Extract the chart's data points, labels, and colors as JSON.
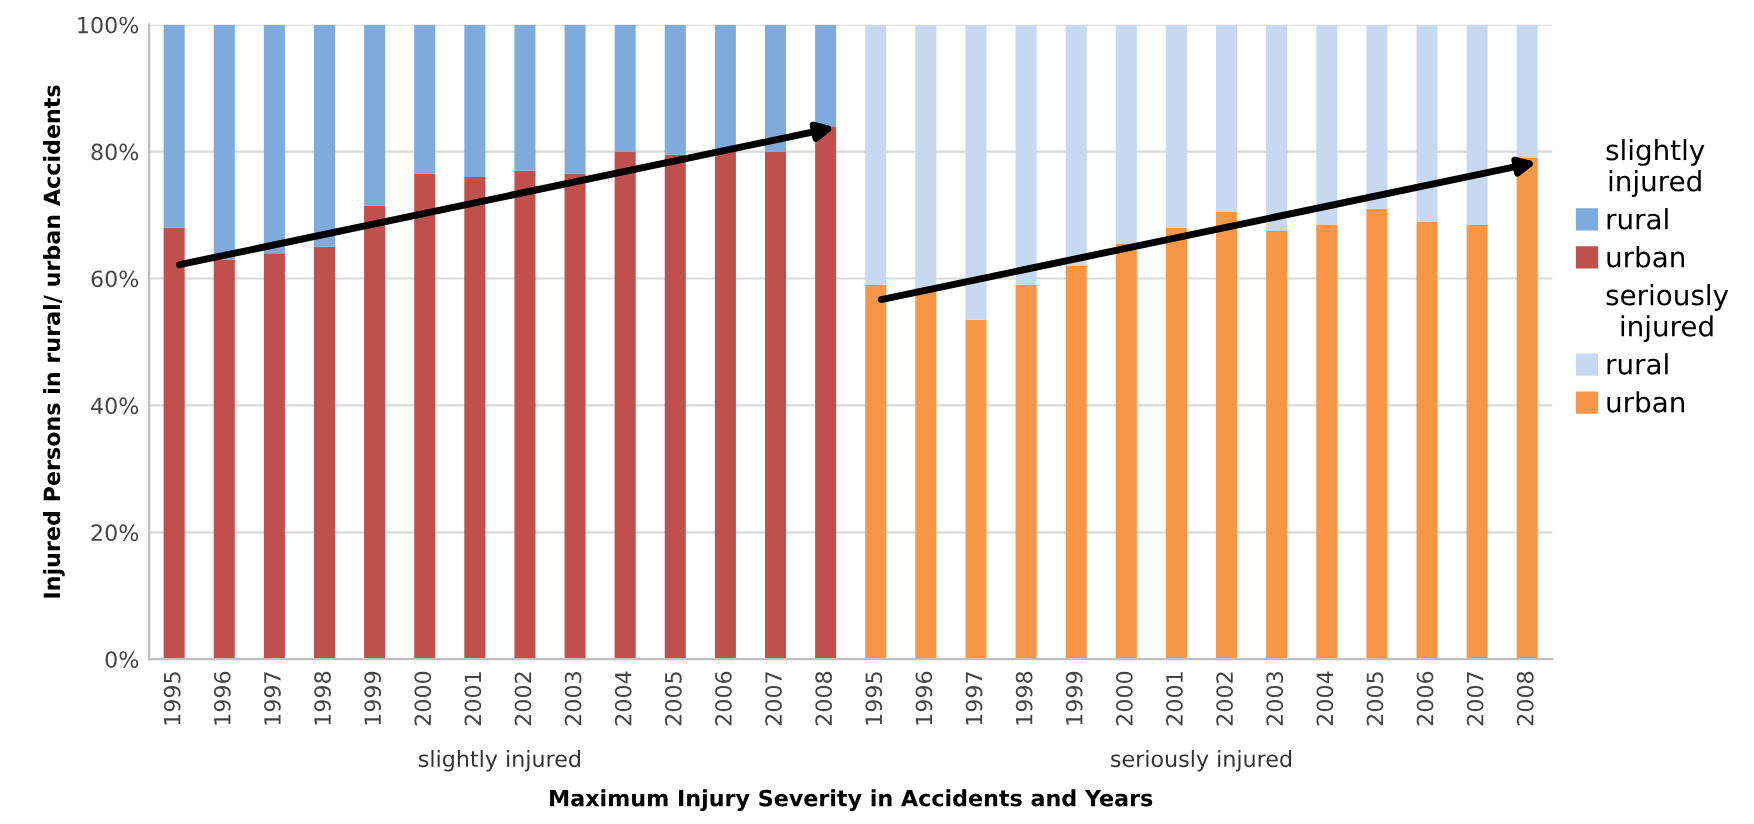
{
  "chart_data": {
    "type": "bar",
    "stacked": true,
    "xlabel": "Maximum Injury Severity in Accidents and Years",
    "ylabel": "Injured Persons in rural/ urban Accidents",
    "categories": [
      "1995",
      "1996",
      "1997",
      "1998",
      "1999",
      "2000",
      "2001",
      "2002",
      "2003",
      "2004",
      "2005",
      "2006",
      "2007",
      "2008",
      "1995",
      "1996",
      "1997",
      "1998",
      "1999",
      "2000",
      "2001",
      "2002",
      "2003",
      "2004",
      "2005",
      "2006",
      "2007",
      "2008"
    ],
    "series": [
      {
        "name": "urban",
        "color": "#c0504d",
        "values": [
          68,
          63,
          64,
          65,
          71.5,
          76.5,
          76,
          77,
          76.5,
          80,
          79.5,
          80.5,
          80,
          84,
          null,
          null,
          null,
          null,
          null,
          null,
          null,
          null,
          null,
          null,
          null,
          null,
          null,
          null
        ]
      },
      {
        "name": "rural",
        "color": "#7eaadc",
        "values": [
          32,
          37,
          36,
          35,
          28.5,
          23.5,
          24,
          23,
          23.5,
          20,
          20.5,
          19.5,
          20,
          16,
          null,
          null,
          null,
          null,
          null,
          null,
          null,
          null,
          null,
          null,
          null,
          null,
          null,
          null
        ]
      },
      {
        "name": "urban",
        "color": "#f79646",
        "values": [
          null,
          null,
          null,
          null,
          null,
          null,
          null,
          null,
          null,
          null,
          null,
          null,
          null,
          null,
          59,
          58.5,
          53.5,
          59,
          62,
          65.5,
          68,
          70.5,
          67.5,
          68.5,
          71,
          69,
          68.5,
          79
        ]
      },
      {
        "name": "rural",
        "color": "#c6d9f1",
        "values": [
          null,
          null,
          null,
          null,
          null,
          null,
          null,
          null,
          null,
          null,
          null,
          null,
          null,
          null,
          41,
          41.5,
          46.5,
          41,
          38,
          34.5,
          32,
          29.5,
          32.5,
          31.5,
          29,
          31,
          31.5,
          21
        ]
      }
    ],
    "annotations": [
      "slightly injured",
      "seriously injured"
    ],
    "ylim": [
      0,
      100
    ],
    "yticks": [
      {
        "value": 0,
        "label": "0%"
      },
      {
        "value": 20,
        "label": "20%"
      },
      {
        "value": 40,
        "label": "40%"
      },
      {
        "value": 60,
        "label": "60%"
      },
      {
        "value": 80,
        "label": "80%"
      },
      {
        "value": 100,
        "label": "100%"
      }
    ],
    "grid": "y",
    "legend": "right"
  }
}
